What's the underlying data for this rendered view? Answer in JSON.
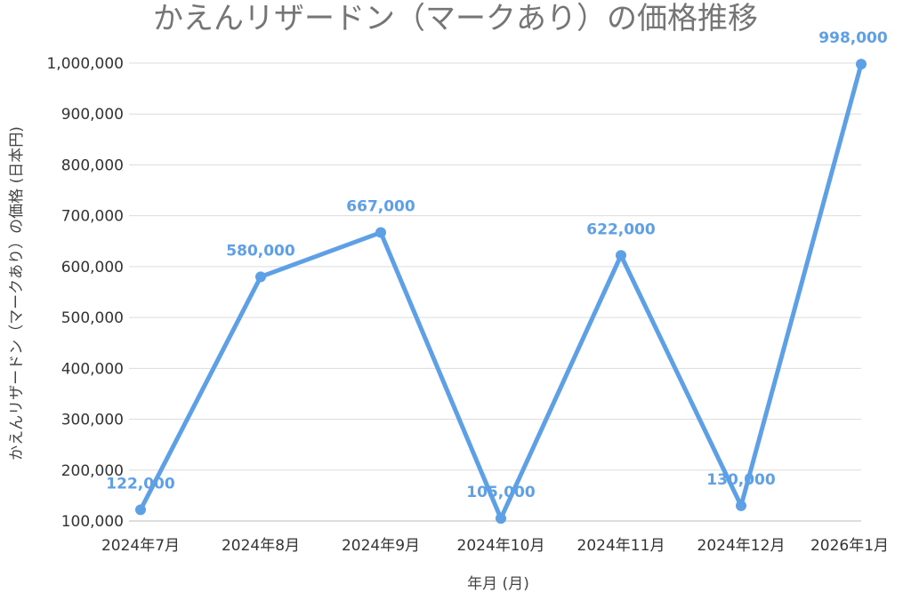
{
  "chart_data": {
    "type": "line",
    "title": "かえんリザードン（マークあり）の価格推移",
    "xlabel": "年月 (月)",
    "ylabel": "かえんリザードン（マークあり）の価格 (日本円)",
    "categories": [
      "2024年7月",
      "2024年8月",
      "2024年9月",
      "2024年10月",
      "2024年11月",
      "2024年12月",
      "2026年1月"
    ],
    "series": [
      {
        "values": [
          122000,
          580000,
          667000,
          105000,
          622000,
          130000,
          998000
        ],
        "labels": [
          "122,000",
          "580,000",
          "667,000",
          "105,000",
          "622,000",
          "130,000",
          "998,000"
        ]
      }
    ],
    "ylim": [
      100000,
      1000000
    ],
    "yticks": [
      100000,
      200000,
      300000,
      400000,
      500000,
      600000,
      700000,
      800000,
      900000,
      1000000
    ],
    "ytick_labels": [
      "100,000",
      "200,000",
      "300,000",
      "400,000",
      "500,000",
      "600,000",
      "700,000",
      "800,000",
      "900,000",
      "1,000,000"
    ],
    "grid": true,
    "legend": "none",
    "colors": {
      "series": "#5da0e6",
      "title": "#757575",
      "grid": "#dcdcdc"
    }
  }
}
